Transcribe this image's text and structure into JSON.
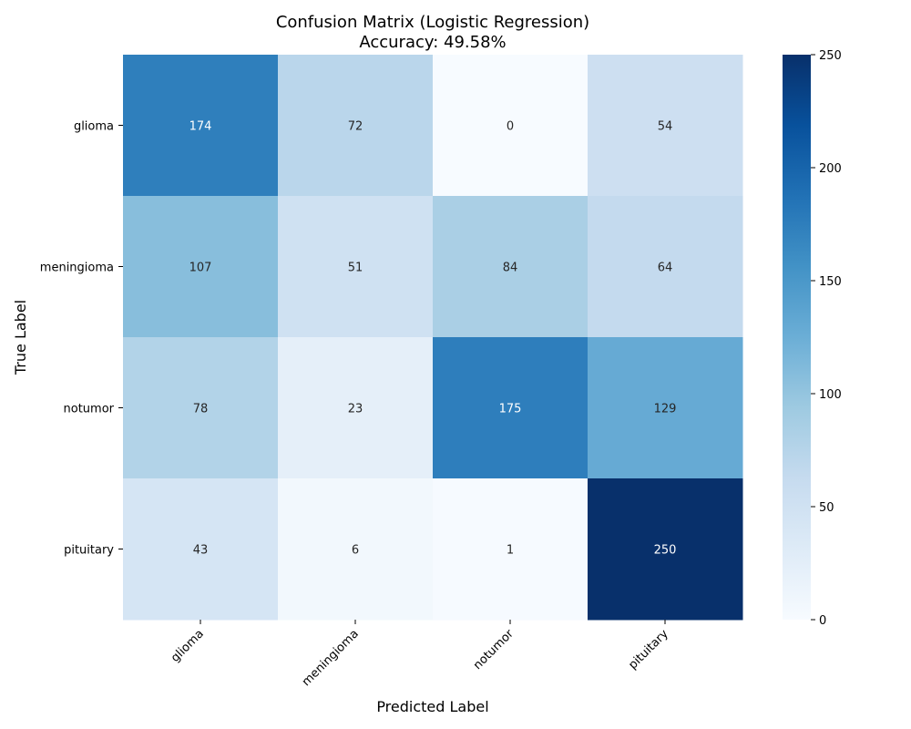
{
  "chart_data": {
    "type": "heatmap",
    "title": "Confusion Matrix (Logistic Regression)",
    "subtitle": "Accuracy: 49.58%",
    "xlabel": "Predicted Label",
    "ylabel": "True Label",
    "x_categories": [
      "glioma",
      "meningioma",
      "notumor",
      "pituitary"
    ],
    "y_categories": [
      "glioma",
      "meningioma",
      "notumor",
      "pituitary"
    ],
    "values": [
      [
        174,
        72,
        0,
        54
      ],
      [
        107,
        51,
        84,
        64
      ],
      [
        78,
        23,
        175,
        129
      ],
      [
        43,
        6,
        1,
        250
      ]
    ],
    "colormap": "Blues",
    "colorbar": {
      "min": 0,
      "max": 250,
      "ticks": [
        0,
        50,
        100,
        150,
        200,
        250
      ]
    }
  }
}
